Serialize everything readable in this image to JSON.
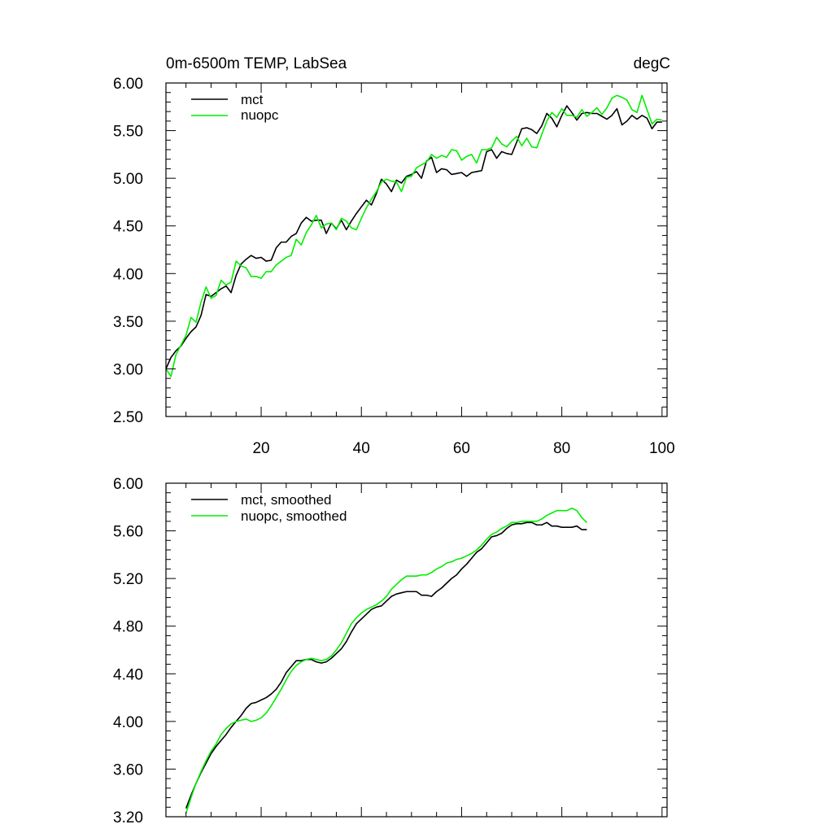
{
  "figure": {
    "title_left": "0m-6500m TEMP, LabSea",
    "title_right": "degC"
  },
  "chart_data": [
    {
      "type": "line",
      "panel": "top",
      "title": "0m-6500m TEMP, LabSea",
      "units": "degC",
      "xlim": [
        1,
        101
      ],
      "ylim": [
        2.5,
        6.0
      ],
      "xticks": [
        20,
        40,
        60,
        80,
        100
      ],
      "xtick_labels": [
        "20",
        "40",
        "60",
        "80",
        "100"
      ],
      "yticks": [
        2.5,
        3.0,
        3.5,
        4.0,
        4.5,
        5.0,
        5.5,
        6.0
      ],
      "ytick_labels": [
        "2.50",
        "3.00",
        "3.50",
        "4.00",
        "4.50",
        "5.00",
        "5.50",
        "6.00"
      ],
      "legend_position": "top-left",
      "series": [
        {
          "name": "mct",
          "color": "#000000",
          "x_start": 1,
          "values": [
            3.0,
            3.12,
            3.19,
            3.24,
            3.32,
            3.39,
            3.44,
            3.56,
            3.78,
            3.76,
            3.8,
            3.84,
            3.87,
            3.8,
            3.98,
            4.1,
            4.15,
            4.19,
            4.16,
            4.17,
            4.13,
            4.14,
            4.27,
            4.33,
            4.33,
            4.39,
            4.42,
            4.53,
            4.59,
            4.55,
            4.56,
            4.56,
            4.42,
            4.53,
            4.47,
            4.56,
            4.46,
            4.55,
            4.63,
            4.7,
            4.77,
            4.72,
            4.84,
            4.99,
            4.94,
            4.86,
            4.98,
            4.95,
            5.02,
            5.04,
            5.07,
            5.0,
            5.18,
            5.22,
            5.06,
            5.1,
            5.09,
            5.04,
            5.05,
            5.06,
            5.02,
            5.06,
            5.07,
            5.08,
            5.28,
            5.3,
            5.21,
            5.28,
            5.26,
            5.25,
            5.38,
            5.52,
            5.53,
            5.51,
            5.47,
            5.55,
            5.68,
            5.63,
            5.54,
            5.66,
            5.76,
            5.69,
            5.61,
            5.68,
            5.69,
            5.68,
            5.68,
            5.65,
            5.62,
            5.66,
            5.73,
            5.56,
            5.6,
            5.66,
            5.62,
            5.66,
            5.63,
            5.52,
            5.59,
            5.59
          ]
        },
        {
          "name": "nuopc",
          "color": "#00ee00",
          "x_start": 1,
          "values": [
            3.0,
            2.92,
            3.15,
            3.25,
            3.35,
            3.54,
            3.49,
            3.7,
            3.86,
            3.74,
            3.77,
            3.93,
            3.88,
            3.91,
            4.13,
            4.08,
            4.06,
            3.97,
            3.97,
            3.95,
            4.02,
            4.02,
            4.09,
            4.13,
            4.17,
            4.19,
            4.36,
            4.3,
            4.43,
            4.51,
            4.61,
            4.48,
            4.52,
            4.53,
            4.46,
            4.58,
            4.55,
            4.48,
            4.46,
            4.58,
            4.69,
            4.78,
            4.86,
            4.96,
            4.99,
            4.97,
            4.96,
            4.86,
            5.01,
            5.02,
            5.11,
            5.14,
            5.17,
            5.25,
            5.21,
            5.24,
            5.22,
            5.3,
            5.29,
            5.19,
            5.23,
            5.25,
            5.16,
            5.3,
            5.3,
            5.32,
            5.43,
            5.36,
            5.33,
            5.39,
            5.44,
            5.34,
            5.42,
            5.33,
            5.32,
            5.46,
            5.6,
            5.69,
            5.64,
            5.73,
            5.66,
            5.66,
            5.64,
            5.72,
            5.65,
            5.69,
            5.74,
            5.67,
            5.74,
            5.84,
            5.87,
            5.85,
            5.82,
            5.72,
            5.69,
            5.87,
            5.72,
            5.57,
            5.62,
            5.61
          ]
        }
      ]
    },
    {
      "type": "line",
      "panel": "bottom",
      "title": "",
      "xlim": [
        1,
        101
      ],
      "ylim": [
        3.2,
        6.0
      ],
      "yticks": [
        3.2,
        3.6,
        4.0,
        4.4,
        4.8,
        5.2,
        5.6,
        6.0
      ],
      "ytick_labels": [
        "3.20",
        "3.60",
        "4.00",
        "4.40",
        "4.80",
        "5.20",
        "5.60",
        "6.00"
      ],
      "legend_position": "top-left",
      "series": [
        {
          "name": "mct, smoothed",
          "color": "#000000",
          "x_start": 5,
          "values": [
            3.27,
            3.38,
            3.48,
            3.57,
            3.65,
            3.73,
            3.79,
            3.84,
            3.89,
            3.95,
            4.0,
            4.05,
            4.11,
            4.15,
            4.16,
            4.18,
            4.2,
            4.23,
            4.27,
            4.33,
            4.41,
            4.46,
            4.51,
            4.51,
            4.52,
            4.52,
            4.5,
            4.49,
            4.5,
            4.53,
            4.57,
            4.61,
            4.67,
            4.75,
            4.82,
            4.86,
            4.9,
            4.94,
            4.96,
            4.97,
            5.01,
            5.05,
            5.07,
            5.08,
            5.09,
            5.09,
            5.09,
            5.06,
            5.06,
            5.05,
            5.09,
            5.12,
            5.16,
            5.2,
            5.23,
            5.28,
            5.32,
            5.37,
            5.42,
            5.45,
            5.5,
            5.55,
            5.56,
            5.58,
            5.62,
            5.65,
            5.66,
            5.66,
            5.67,
            5.67,
            5.65,
            5.65,
            5.67,
            5.64,
            5.64,
            5.63,
            5.63,
            5.63,
            5.64,
            5.61,
            5.61
          ]
        },
        {
          "name": "nuopc, smoothed",
          "color": "#00ee00",
          "x_start": 5,
          "values": [
            3.23,
            3.36,
            3.48,
            3.58,
            3.67,
            3.75,
            3.81,
            3.89,
            3.94,
            3.98,
            4.0,
            4.01,
            4.02,
            4.0,
            4.01,
            4.03,
            4.07,
            4.13,
            4.2,
            4.27,
            4.35,
            4.42,
            4.47,
            4.5,
            4.52,
            4.53,
            4.52,
            4.51,
            4.52,
            4.55,
            4.6,
            4.66,
            4.74,
            4.82,
            4.87,
            4.91,
            4.94,
            4.96,
            4.98,
            5.01,
            5.05,
            5.11,
            5.15,
            5.19,
            5.22,
            5.22,
            5.22,
            5.23,
            5.23,
            5.25,
            5.28,
            5.3,
            5.33,
            5.34,
            5.36,
            5.37,
            5.39,
            5.41,
            5.44,
            5.48,
            5.53,
            5.57,
            5.59,
            5.62,
            5.64,
            5.67,
            5.67,
            5.68,
            5.68,
            5.68,
            5.68,
            5.7,
            5.73,
            5.75,
            5.77,
            5.77,
            5.77,
            5.79,
            5.77,
            5.71,
            5.67
          ]
        }
      ]
    }
  ]
}
